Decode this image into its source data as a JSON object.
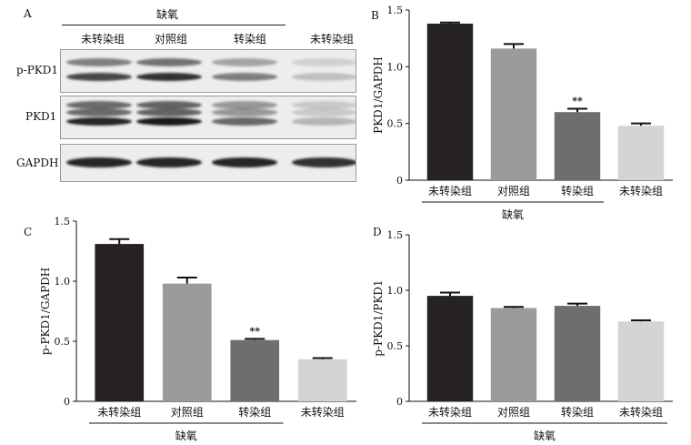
{
  "panel_a": {
    "letter": "A",
    "group_label": "缺氧",
    "lanes": [
      "未转染组",
      "对照组",
      "转染组",
      "未转染组"
    ],
    "blots": [
      {
        "label": "p-PKD1",
        "bands": [
          0.75,
          0.85,
          0.5,
          0.2
        ]
      },
      {
        "label": "PKD1",
        "bands": [
          0.9,
          0.95,
          0.6,
          0.25
        ]
      },
      {
        "label": "GAPDH",
        "bands": [
          0.9,
          0.9,
          0.9,
          0.85
        ]
      }
    ]
  },
  "chart_data": [
    {
      "type": "bar",
      "panel": "B",
      "categories": [
        "未转染组",
        "对照组",
        "转染组",
        "未转染组"
      ],
      "values": [
        1.38,
        1.16,
        0.6,
        0.48
      ],
      "errors": [
        0.01,
        0.04,
        0.03,
        0.02
      ],
      "significance": [
        "",
        "",
        "**",
        ""
      ],
      "group_label": "缺氧",
      "group_span": [
        0,
        2
      ],
      "title": "",
      "xlabel": "",
      "ylabel": "PKD1/GAPDH",
      "ylim": [
        0,
        1.5
      ],
      "yticks": [
        0,
        0.5,
        1.0,
        1.5
      ],
      "ytick_labels": [
        "0",
        "0.5",
        "1.0",
        "1.5"
      ],
      "bar_colors": [
        "#262223",
        "#9b9b9d",
        "#6e6e70",
        "#d4d4d6"
      ],
      "grid": false
    },
    {
      "type": "bar",
      "panel": "C",
      "categories": [
        "未转染组",
        "对照组",
        "转染组",
        "未转染组"
      ],
      "values": [
        1.31,
        0.98,
        0.51,
        0.35
      ],
      "errors": [
        0.04,
        0.05,
        0.01,
        0.01
      ],
      "significance": [
        "",
        "",
        "**",
        ""
      ],
      "group_label": "缺氧",
      "group_span": [
        0,
        2
      ],
      "title": "",
      "xlabel": "",
      "ylabel": "p-PKD1/GAPDH",
      "ylim": [
        0,
        1.5
      ],
      "yticks": [
        0,
        0.5,
        1.0,
        1.5
      ],
      "ytick_labels": [
        "0",
        "0.5",
        "1.0",
        "1.5"
      ],
      "bar_colors": [
        "#262223",
        "#9b9b9d",
        "#6e6e70",
        "#d4d4d6"
      ],
      "grid": false
    },
    {
      "type": "bar",
      "panel": "D",
      "categories": [
        "未转染组",
        "对照组",
        "转染组",
        "未转染组"
      ],
      "values": [
        0.95,
        0.84,
        0.86,
        0.72
      ],
      "errors": [
        0.03,
        0.01,
        0.02,
        0.01
      ],
      "significance": [
        "",
        "",
        "",
        ""
      ],
      "group_label": "缺氧",
      "group_span": [
        0,
        3
      ],
      "title": "",
      "xlabel": "",
      "ylabel": "p-PKD1/PKD1",
      "ylim": [
        0,
        1.5
      ],
      "yticks": [
        0,
        0.5,
        1.0,
        1.5
      ],
      "ytick_labels": [
        "0",
        "0.5",
        "1.0",
        "1.5"
      ],
      "bar_colors": [
        "#262223",
        "#9b9b9d",
        "#6e6e70",
        "#d4d4d6"
      ],
      "grid": false
    }
  ]
}
